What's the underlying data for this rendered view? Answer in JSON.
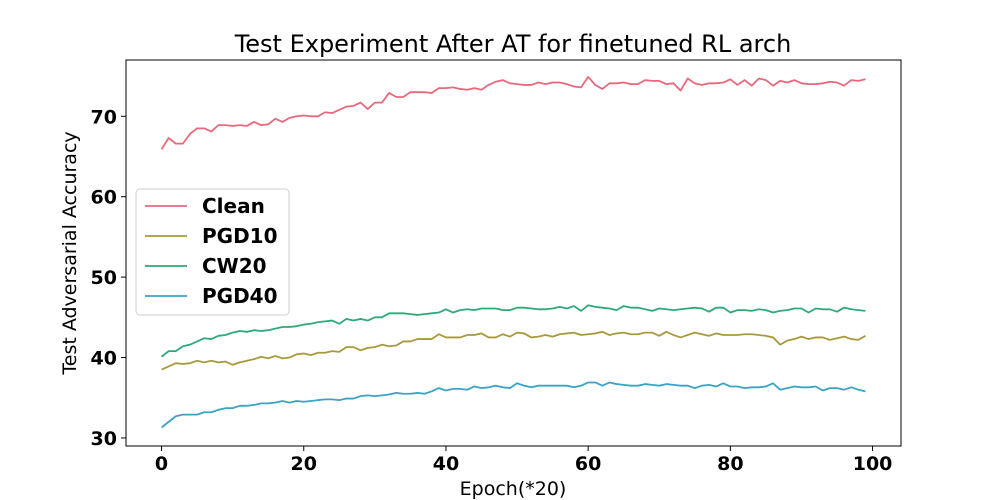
{
  "chart_data": {
    "type": "line",
    "title": "Test Experiment After AT for finetuned RL arch",
    "xlabel": "Epoch(*20)",
    "ylabel": "Test Adversarial Accuracy",
    "xlim": [
      -5,
      104
    ],
    "ylim": [
      29,
      77
    ],
    "xticks": [
      0,
      20,
      40,
      60,
      80,
      100
    ],
    "yticks": [
      30,
      40,
      50,
      60,
      70
    ],
    "legend_position": "center-left",
    "grid": false,
    "x": [
      0,
      1,
      2,
      3,
      4,
      5,
      6,
      7,
      8,
      9,
      10,
      11,
      12,
      13,
      14,
      15,
      16,
      17,
      18,
      19,
      20,
      21,
      22,
      23,
      24,
      25,
      26,
      27,
      28,
      29,
      30,
      31,
      32,
      33,
      34,
      35,
      36,
      37,
      38,
      39,
      40,
      41,
      42,
      43,
      44,
      45,
      46,
      47,
      48,
      49,
      50,
      51,
      52,
      53,
      54,
      55,
      56,
      57,
      58,
      59,
      60,
      61,
      62,
      63,
      64,
      65,
      66,
      67,
      68,
      69,
      70,
      71,
      72,
      73,
      74,
      75,
      76,
      77,
      78,
      79,
      80,
      81,
      82,
      83,
      84,
      85,
      86,
      87,
      88,
      89,
      90,
      91,
      92,
      93,
      94,
      95,
      96,
      97,
      98,
      99
    ],
    "series": [
      {
        "name": "Clean",
        "color": "#e8697d",
        "values": [
          65.9,
          67.3,
          66.6,
          66.6,
          67.8,
          68.5,
          68.5,
          68.1,
          68.9,
          68.9,
          68.8,
          68.9,
          68.8,
          69.3,
          68.9,
          69.0,
          69.7,
          69.3,
          69.8,
          70.0,
          70.1,
          70.0,
          70.0,
          70.5,
          70.4,
          70.8,
          71.2,
          71.3,
          71.7,
          70.9,
          71.7,
          71.7,
          72.9,
          72.4,
          72.4,
          73.0,
          73.0,
          73.0,
          72.9,
          73.5,
          73.5,
          73.6,
          73.4,
          73.3,
          73.5,
          73.3,
          73.9,
          74.3,
          74.5,
          74.1,
          74.0,
          73.9,
          73.9,
          74.2,
          74.0,
          74.2,
          74.2,
          74.0,
          73.7,
          73.6,
          74.9,
          73.9,
          73.4,
          74.1,
          74.1,
          74.2,
          74.0,
          74.0,
          74.5,
          74.4,
          74.4,
          74.0,
          74.1,
          73.2,
          74.7,
          74.1,
          73.9,
          74.1,
          74.1,
          74.2,
          74.6,
          73.9,
          74.5,
          73.8,
          74.7,
          74.5,
          73.8,
          74.4,
          74.2,
          74.5,
          74.1,
          74.0,
          74.0,
          74.1,
          74.3,
          74.2,
          73.8,
          74.5,
          74.4,
          74.6
        ]
      },
      {
        "name": "PGD10",
        "color": "#a89a3c",
        "values": [
          38.5,
          38.9,
          39.3,
          39.2,
          39.3,
          39.6,
          39.4,
          39.6,
          39.4,
          39.5,
          39.1,
          39.4,
          39.6,
          39.8,
          40.1,
          39.9,
          40.2,
          39.9,
          40.0,
          40.4,
          40.5,
          40.3,
          40.6,
          40.6,
          40.8,
          40.7,
          41.3,
          41.3,
          40.9,
          41.2,
          41.3,
          41.6,
          41.4,
          41.5,
          42.0,
          42.0,
          42.3,
          42.3,
          42.3,
          42.9,
          42.5,
          42.5,
          42.5,
          42.8,
          42.8,
          43.0,
          42.5,
          42.5,
          42.9,
          42.6,
          43.1,
          43.0,
          42.5,
          42.6,
          42.8,
          42.6,
          42.9,
          43.0,
          43.1,
          42.8,
          42.9,
          43.0,
          43.2,
          42.8,
          43.0,
          43.1,
          42.9,
          42.9,
          43.1,
          43.1,
          42.7,
          43.2,
          42.8,
          42.5,
          42.8,
          43.1,
          42.9,
          42.7,
          43.0,
          42.8,
          42.8,
          42.8,
          42.9,
          42.9,
          42.8,
          42.7,
          42.5,
          41.6,
          42.1,
          42.3,
          42.6,
          42.3,
          42.5,
          42.5,
          42.2,
          42.4,
          42.6,
          42.3,
          42.2,
          42.7
        ]
      },
      {
        "name": "CW20",
        "color": "#2eaa7a",
        "values": [
          40.1,
          40.8,
          40.8,
          41.4,
          41.6,
          42.0,
          42.4,
          42.3,
          42.7,
          42.8,
          43.1,
          43.3,
          43.2,
          43.4,
          43.3,
          43.4,
          43.6,
          43.8,
          43.8,
          43.9,
          44.1,
          44.2,
          44.4,
          44.5,
          44.6,
          44.2,
          44.8,
          44.6,
          44.8,
          44.6,
          45.0,
          45.0,
          45.5,
          45.5,
          45.5,
          45.4,
          45.3,
          45.4,
          45.5,
          45.6,
          46.0,
          45.6,
          45.9,
          46.0,
          45.9,
          46.1,
          46.1,
          46.1,
          45.9,
          45.9,
          46.2,
          46.2,
          46.1,
          46.0,
          46.0,
          46.1,
          46.3,
          46.1,
          46.4,
          45.8,
          46.5,
          46.3,
          46.2,
          46.1,
          45.9,
          46.4,
          46.2,
          46.2,
          46.0,
          45.8,
          46.1,
          46.0,
          45.9,
          46.0,
          46.1,
          46.2,
          46.1,
          45.7,
          46.2,
          46.2,
          45.6,
          45.9,
          45.9,
          45.8,
          46.0,
          45.9,
          45.6,
          45.8,
          45.9,
          46.1,
          46.1,
          45.6,
          46.1,
          46.0,
          46.0,
          45.7,
          46.2,
          46.0,
          45.9,
          45.8
        ]
      },
      {
        "name": "PGD40",
        "color": "#3ba3c4",
        "values": [
          31.3,
          32.0,
          32.7,
          32.9,
          32.9,
          32.9,
          33.2,
          33.2,
          33.5,
          33.7,
          33.7,
          34.0,
          34.0,
          34.1,
          34.3,
          34.3,
          34.4,
          34.6,
          34.4,
          34.6,
          34.5,
          34.6,
          34.7,
          34.8,
          34.8,
          34.7,
          34.9,
          34.9,
          35.2,
          35.3,
          35.2,
          35.3,
          35.4,
          35.6,
          35.5,
          35.5,
          35.6,
          35.5,
          35.8,
          36.2,
          35.9,
          36.1,
          36.1,
          36.0,
          36.4,
          36.2,
          36.3,
          36.5,
          36.3,
          36.2,
          36.8,
          36.5,
          36.3,
          36.5,
          36.5,
          36.5,
          36.5,
          36.5,
          36.3,
          36.5,
          36.9,
          36.9,
          36.5,
          36.9,
          36.7,
          36.6,
          36.5,
          36.5,
          36.7,
          36.6,
          36.5,
          36.7,
          36.6,
          36.5,
          36.5,
          36.2,
          36.5,
          36.6,
          36.4,
          36.8,
          36.4,
          36.4,
          36.2,
          36.3,
          36.3,
          36.4,
          36.8,
          36.0,
          36.2,
          36.4,
          36.3,
          36.3,
          36.4,
          35.9,
          36.2,
          36.2,
          36.0,
          36.3,
          36.0,
          35.8
        ]
      }
    ]
  }
}
